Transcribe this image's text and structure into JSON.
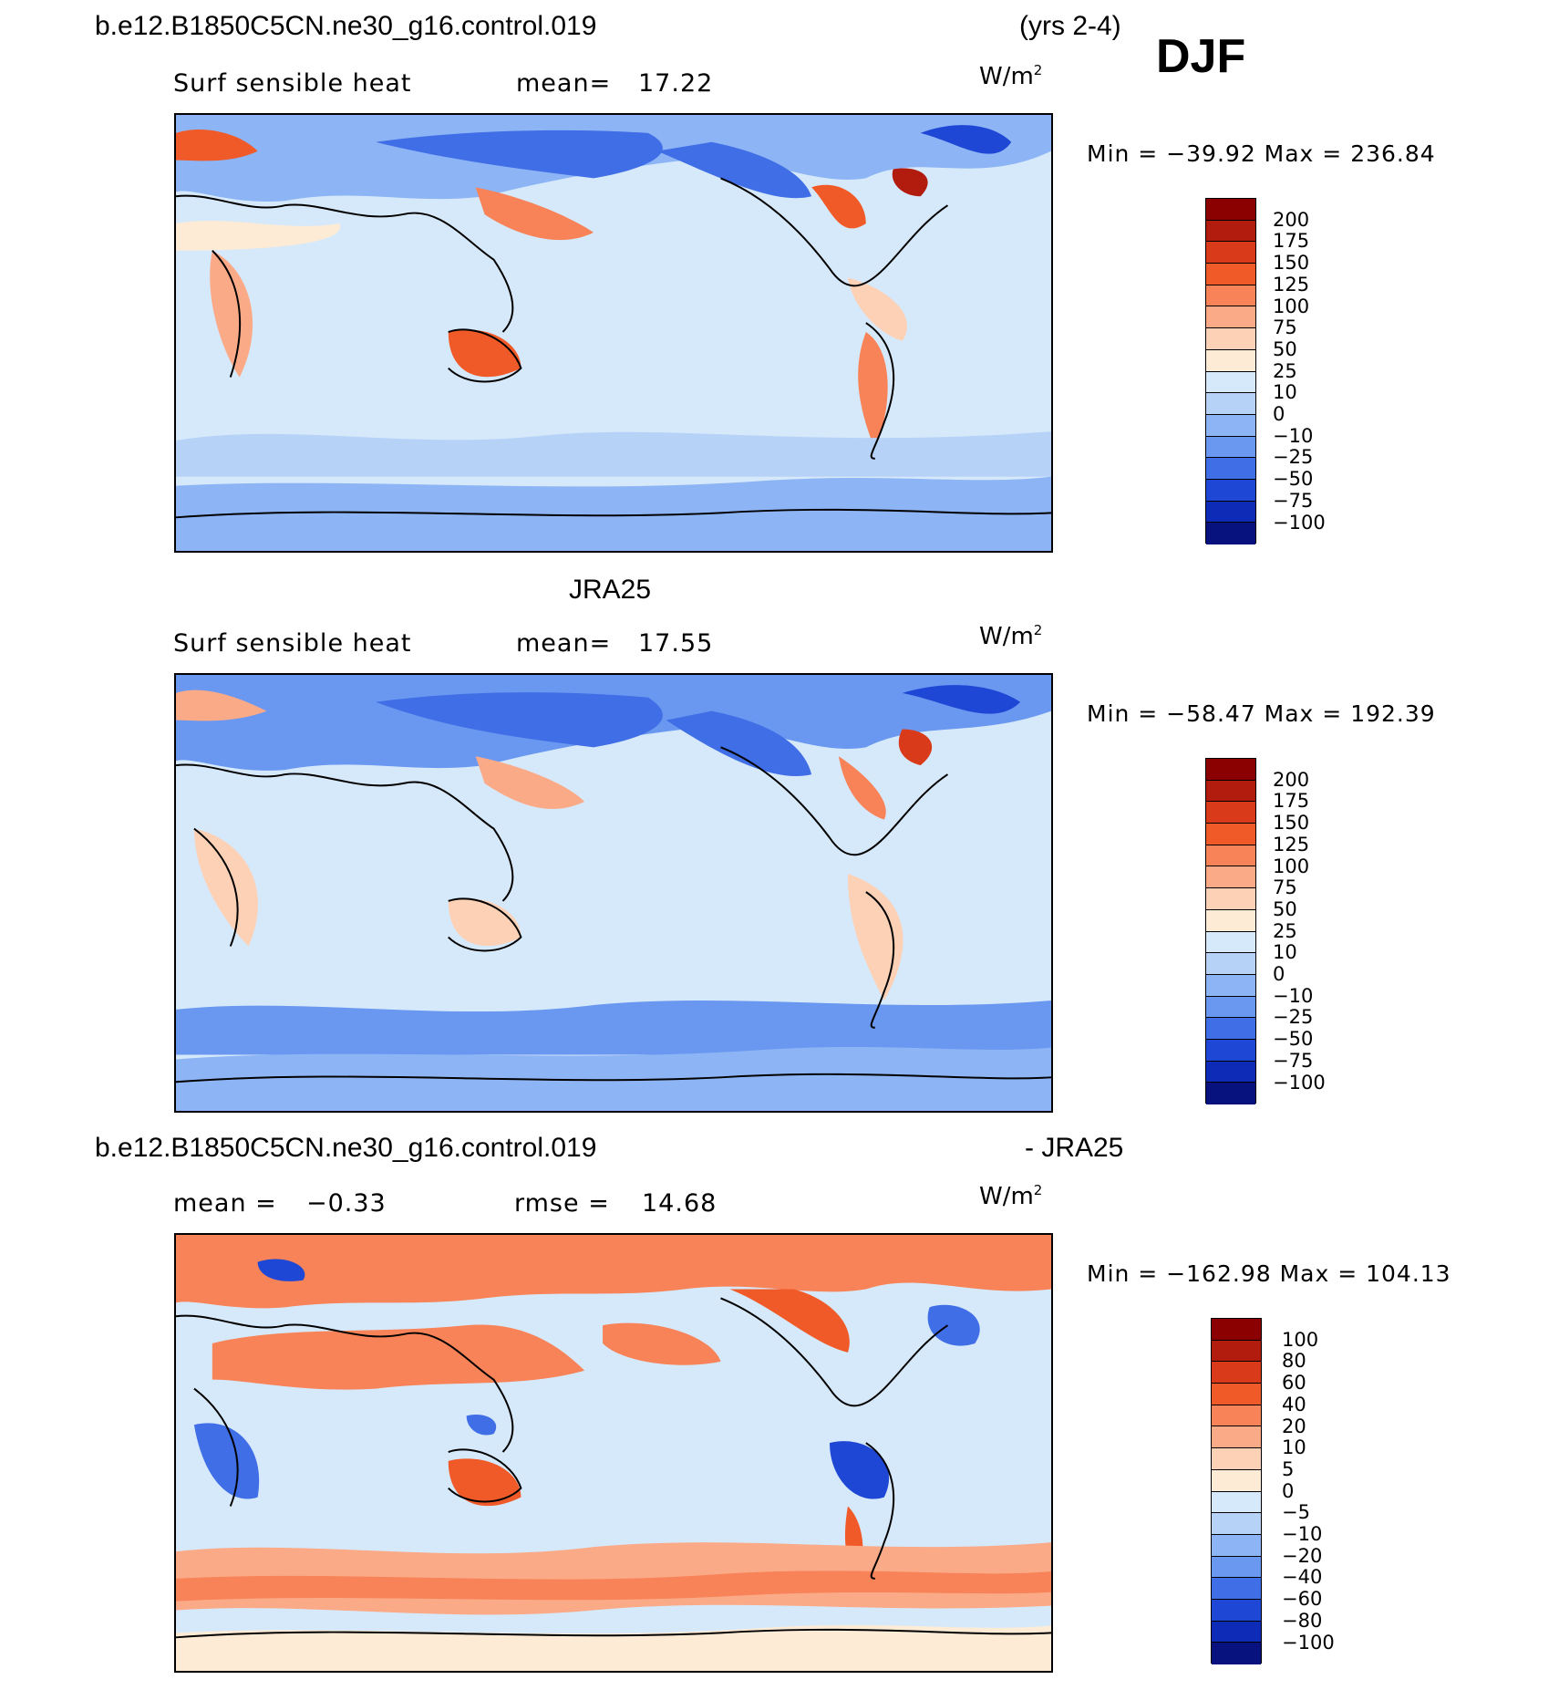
{
  "header": {
    "case_title": "b.e12.B1850C5CN.ne30_g16.control.019",
    "years": "(yrs 2-4)",
    "season": "DJF"
  },
  "panels": [
    {
      "title": "",
      "variable_label": "Surf sensible heat",
      "stat_label": "mean=",
      "stat_value": "17.22",
      "units": "W/m",
      "units_sup": "2",
      "minmax": "Min = −39.92 Max = 236.84",
      "colorbar_ticks": [
        "200",
        "175",
        "150",
        "125",
        "100",
        "75",
        "50",
        "25",
        "10",
        "0",
        "−10",
        "−25",
        "−50",
        "−75",
        "−100"
      ],
      "colorbar_colors": [
        "#8b0000",
        "#b21c0e",
        "#d93a1a",
        "#f05a28",
        "#f88358",
        "#fbaa87",
        "#fcd1b6",
        "#fdebd6",
        "#d6e9fb",
        "#b6d2f7",
        "#8db5f5",
        "#6a98f0",
        "#3f6ee6",
        "#1f47d6",
        "#0e2bb8",
        "#08127f"
      ]
    },
    {
      "title": "JRA25",
      "variable_label": "Surf sensible heat",
      "stat_label": "mean=",
      "stat_value": "17.55",
      "units": "W/m",
      "units_sup": "2",
      "minmax": "Min = −58.47 Max = 192.39",
      "colorbar_ticks": [
        "200",
        "175",
        "150",
        "125",
        "100",
        "75",
        "50",
        "25",
        "10",
        "0",
        "−10",
        "−25",
        "−50",
        "−75",
        "−100"
      ],
      "colorbar_colors": [
        "#8b0000",
        "#b21c0e",
        "#d93a1a",
        "#f05a28",
        "#f88358",
        "#fbaa87",
        "#fcd1b6",
        "#fdebd6",
        "#d6e9fb",
        "#b6d2f7",
        "#8db5f5",
        "#6a98f0",
        "#3f6ee6",
        "#1f47d6",
        "#0e2bb8",
        "#08127f"
      ]
    },
    {
      "title_left": "b.e12.B1850C5CN.ne30_g16.control.019",
      "title_right": "- JRA25",
      "stat1_label": "mean =",
      "stat1_value": "−0.33",
      "stat2_label": "rmse =",
      "stat2_value": "14.68",
      "units": "W/m",
      "units_sup": "2",
      "minmax": "Min = −162.98 Max = 104.13",
      "colorbar_ticks": [
        "100",
        "80",
        "60",
        "40",
        "20",
        "10",
        "5",
        "0",
        "−5",
        "−10",
        "−20",
        "−40",
        "−60",
        "−80",
        "−100"
      ],
      "colorbar_colors": [
        "#8b0000",
        "#b21c0e",
        "#d93a1a",
        "#f05a28",
        "#f88358",
        "#fbaa87",
        "#fcd1b6",
        "#fdebd6",
        "#d6e9fb",
        "#b6d2f7",
        "#8db5f5",
        "#6a98f0",
        "#3f6ee6",
        "#1f47d6",
        "#0e2bb8",
        "#08127f"
      ]
    }
  ]
}
